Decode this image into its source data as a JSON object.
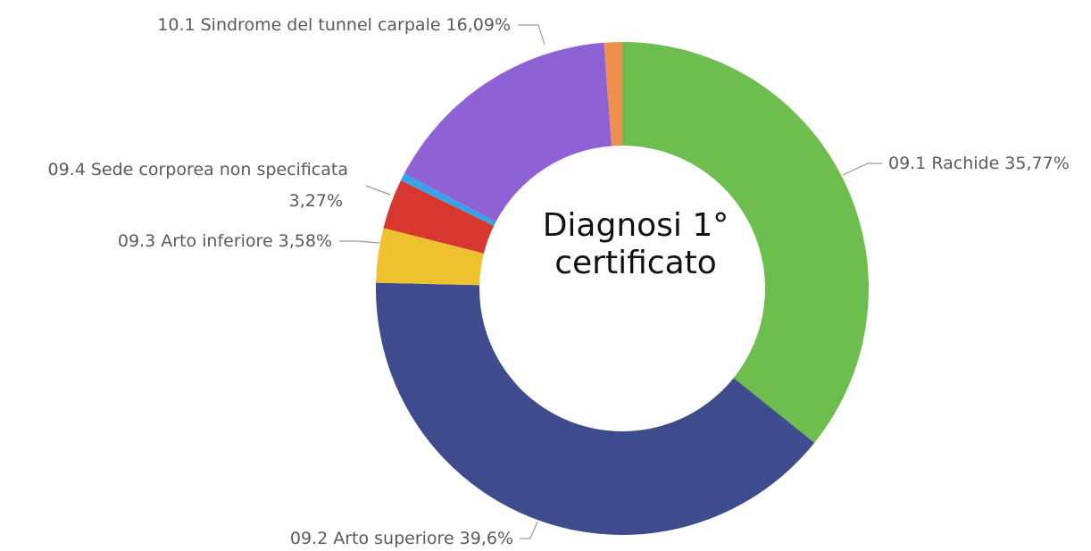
{
  "chart_data": {
    "type": "donut",
    "title": "Diagnosi 1° certificato",
    "categories": [
      "09.1 Rachide",
      "09.2 Arto superiore",
      "09.3 Arto inferiore",
      "09.4 Sede corporea non specificata",
      null,
      "10.1 Sindrome del tunnel carpale",
      null
    ],
    "values": [
      35.77,
      39.6,
      3.58,
      3.27,
      0.5,
      16.09,
      1.19
    ],
    "value_labels": [
      "35,77%",
      "39,6%",
      "3,58%",
      "3,27%",
      null,
      "16,09%",
      null
    ],
    "colors": [
      "#6dbd4f",
      "#3e4b8c",
      "#eec22f",
      "#d8372f",
      "#3aa0e8",
      "#8e62d5",
      "#f0904f"
    ]
  }
}
